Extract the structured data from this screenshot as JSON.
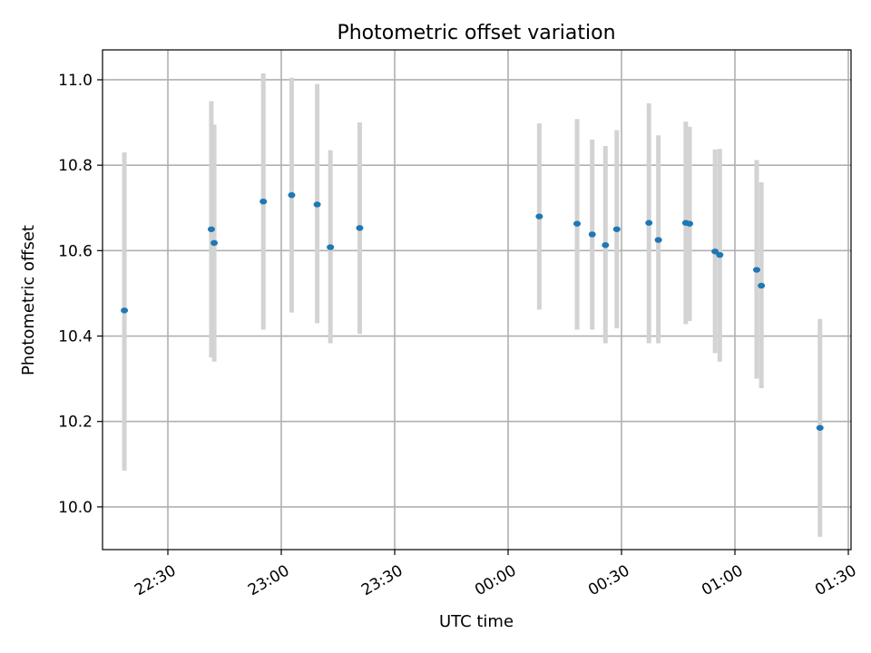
{
  "chart_data": {
    "type": "scatter",
    "title": "Photometric offset variation",
    "xlabel": "UTC time",
    "ylabel": "Photometric offset",
    "grid": true,
    "x_unit": "UTC time (hh:mm)",
    "xlim": [
      "22:12:43",
      "01:30:43"
    ],
    "ylim": [
      9.9,
      11.07
    ],
    "x_ticks": [
      "22:30",
      "23:00",
      "23:30",
      "00:00",
      "00:30",
      "01:00",
      "01:30"
    ],
    "y_ticks": [
      "10.0",
      "10.2",
      "10.4",
      "10.6",
      "10.8",
      "11.0"
    ],
    "y_tick_values": [
      10.0,
      10.2,
      10.4,
      10.6,
      10.8,
      11.0
    ],
    "colors": {
      "point": "#1f77b4",
      "errorbar": "#d3d3d3",
      "grid": "#b0b0b0"
    },
    "series": [
      {
        "points": [
          {
            "x": "22:18:30",
            "y": 10.46,
            "low": 10.085,
            "high": 10.83
          },
          {
            "x": "22:41:30",
            "y": 10.65,
            "low": 10.35,
            "high": 10.95
          },
          {
            "x": "22:42:15",
            "y": 10.618,
            "low": 10.34,
            "high": 10.895
          },
          {
            "x": "22:55:15",
            "y": 10.715,
            "low": 10.415,
            "high": 11.015
          },
          {
            "x": "23:02:45",
            "y": 10.73,
            "low": 10.455,
            "high": 11.005
          },
          {
            "x": "23:09:30",
            "y": 10.708,
            "low": 10.43,
            "high": 10.99
          },
          {
            "x": "23:13:00",
            "y": 10.608,
            "low": 10.383,
            "high": 10.835
          },
          {
            "x": "23:20:45",
            "y": 10.653,
            "low": 10.405,
            "high": 10.9
          },
          {
            "x": "00:08:15",
            "y": 10.68,
            "low": 10.462,
            "high": 10.898
          },
          {
            "x": "00:18:15",
            "y": 10.663,
            "low": 10.415,
            "high": 10.908
          },
          {
            "x": "00:22:15",
            "y": 10.638,
            "low": 10.415,
            "high": 10.86
          },
          {
            "x": "00:25:45",
            "y": 10.613,
            "low": 10.383,
            "high": 10.845
          },
          {
            "x": "00:28:45",
            "y": 10.65,
            "low": 10.418,
            "high": 10.882
          },
          {
            "x": "00:37:15",
            "y": 10.665,
            "low": 10.383,
            "high": 10.945
          },
          {
            "x": "00:39:45",
            "y": 10.625,
            "low": 10.383,
            "high": 10.87
          },
          {
            "x": "00:47:00",
            "y": 10.665,
            "low": 10.428,
            "high": 10.902
          },
          {
            "x": "00:48:00",
            "y": 10.663,
            "low": 10.435,
            "high": 10.89
          },
          {
            "x": "00:54:45",
            "y": 10.598,
            "low": 10.36,
            "high": 10.837
          },
          {
            "x": "00:56:00",
            "y": 10.59,
            "low": 10.34,
            "high": 10.838
          },
          {
            "x": "01:05:45",
            "y": 10.555,
            "low": 10.3,
            "high": 10.812
          },
          {
            "x": "01:07:00",
            "y": 10.518,
            "low": 10.278,
            "high": 10.76
          },
          {
            "x": "01:22:30",
            "y": 10.185,
            "low": 9.93,
            "high": 10.44
          }
        ]
      }
    ]
  }
}
